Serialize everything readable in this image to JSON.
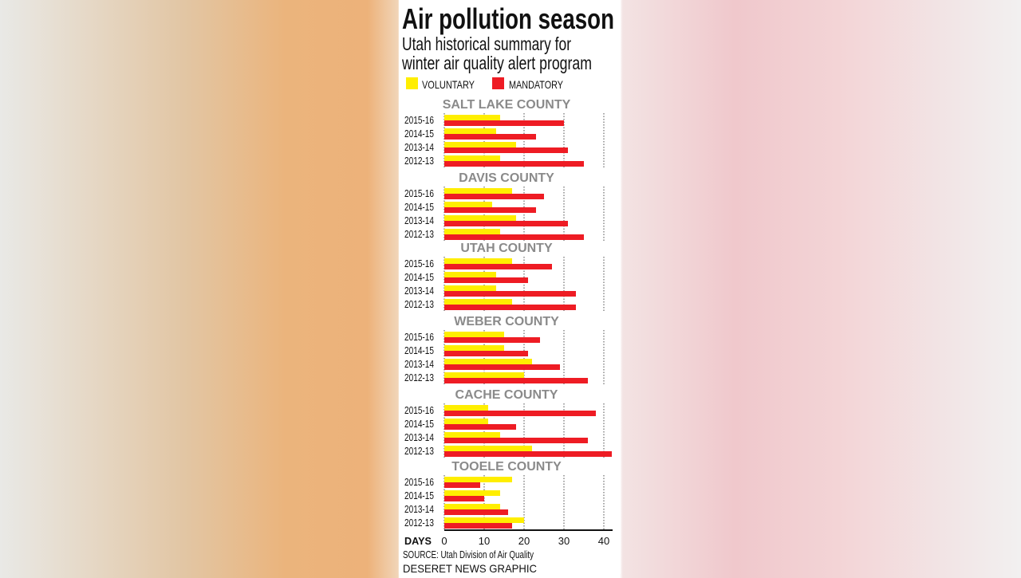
{
  "chart_data": {
    "type": "bar",
    "orientation": "horizontal",
    "title": "Air pollution season",
    "subtitle": [
      "Utah historical summary for",
      "winter air quality alert program"
    ],
    "xlabel": "DAYS",
    "xlim": [
      0,
      42
    ],
    "xticks": [
      0,
      10,
      20,
      30,
      40
    ],
    "grid": true,
    "legend_placement": "top",
    "legend": [
      {
        "name": "VOLUNTARY",
        "color": "#ffee00"
      },
      {
        "name": "MANDATORY",
        "color": "#ee1c24"
      }
    ],
    "categories": [
      "2015-16",
      "2014-15",
      "2013-14",
      "2012-13"
    ],
    "groups": [
      {
        "name": "SALT LAKE COUNTY",
        "voluntary": [
          14,
          13,
          18,
          14
        ],
        "mandatory": [
          30,
          23,
          31,
          35
        ]
      },
      {
        "name": "DAVIS COUNTY",
        "voluntary": [
          17,
          12,
          18,
          14
        ],
        "mandatory": [
          25,
          23,
          31,
          35
        ]
      },
      {
        "name": "UTAH COUNTY",
        "voluntary": [
          17,
          13,
          13,
          17
        ],
        "mandatory": [
          27,
          21,
          33,
          33
        ]
      },
      {
        "name": "WEBER COUNTY",
        "voluntary": [
          15,
          15,
          22,
          20
        ],
        "mandatory": [
          24,
          21,
          29,
          36
        ]
      },
      {
        "name": "CACHE COUNTY",
        "voluntary": [
          11,
          11,
          14,
          22
        ],
        "mandatory": [
          38,
          18,
          36,
          42
        ]
      },
      {
        "name": "TOOELE COUNTY",
        "voluntary": [
          17,
          14,
          14,
          20
        ],
        "mandatory": [
          9,
          10,
          16,
          17
        ]
      }
    ],
    "source": "SOURCE: Utah Division of Air Quality",
    "credit": "DESERET NEWS GRAPHIC"
  }
}
